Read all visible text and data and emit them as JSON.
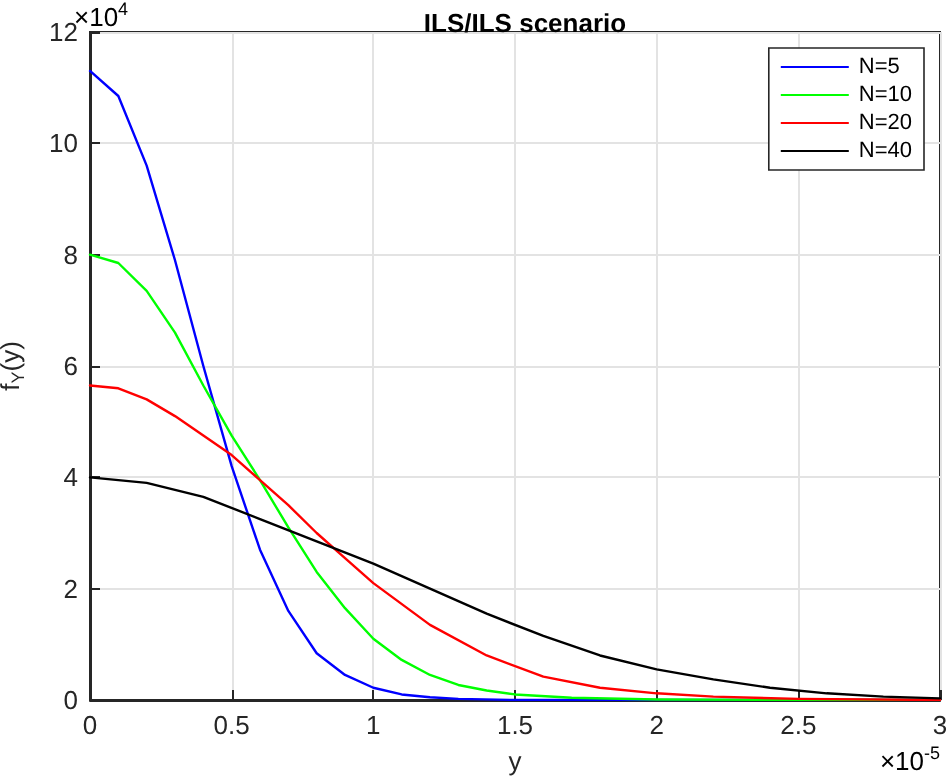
{
  "chart_data": {
    "type": "line",
    "title": "ILS/ILS scenario",
    "xlabel": "y",
    "ylabel": "f$_{Y}$(y)",
    "annotations": [
      "×10$^{4}$",
      "×10$^{-5}$"
    ],
    "xlim": [
      0,
      3
    ],
    "xticks": [
      0,
      0.5,
      1,
      1.5,
      2,
      2.5,
      3
    ],
    "ylim": [
      0,
      12
    ],
    "yticks": [
      0,
      2,
      4,
      6,
      8,
      10,
      12
    ],
    "grid": true,
    "legend": "top right",
    "marker": "none",
    "line_style": "solid",
    "series": [
      {
        "name": "N=5",
        "color": "#0000ff",
        "x": [
          0,
          0.1,
          0.2,
          0.3,
          0.4,
          0.5,
          0.6,
          0.7,
          0.8,
          0.9,
          1.0,
          1.1,
          1.2,
          1.3,
          1.5,
          2,
          3
        ],
        "values": [
          11.3,
          10.85,
          9.6,
          7.9,
          6.0,
          4.2,
          2.7,
          1.6,
          0.84,
          0.45,
          0.22,
          0.1,
          0.05,
          0.02,
          0,
          0,
          0
        ]
      },
      {
        "name": "N=10",
        "color": "#00ff00",
        "x": [
          0,
          0.1,
          0.2,
          0.3,
          0.4,
          0.5,
          0.6,
          0.7,
          0.8,
          0.9,
          1.0,
          1.1,
          1.2,
          1.3,
          1.4,
          1.5,
          1.7,
          2,
          2.5,
          3
        ],
        "values": [
          8.0,
          7.85,
          7.35,
          6.6,
          5.65,
          4.75,
          3.95,
          3.1,
          2.3,
          1.65,
          1.1,
          0.72,
          0.45,
          0.27,
          0.17,
          0.1,
          0.04,
          0.01,
          0,
          0
        ]
      },
      {
        "name": "N=20",
        "color": "#ff0000",
        "x": [
          0,
          0.1,
          0.2,
          0.3,
          0.4,
          0.5,
          0.6,
          0.7,
          0.8,
          0.9,
          1.0,
          1.2,
          1.4,
          1.6,
          1.8,
          2.0,
          2.2,
          2.5,
          3
        ],
        "values": [
          5.65,
          5.6,
          5.4,
          5.1,
          4.75,
          4.4,
          3.95,
          3.5,
          3.0,
          2.55,
          2.1,
          1.35,
          0.8,
          0.42,
          0.22,
          0.12,
          0.06,
          0.02,
          0
        ]
      },
      {
        "name": "N=40",
        "color": "#000000",
        "x": [
          0,
          0.2,
          0.4,
          0.6,
          0.8,
          1.0,
          1.2,
          1.4,
          1.6,
          1.8,
          2.0,
          2.2,
          2.4,
          2.6,
          2.8,
          3.0
        ],
        "values": [
          4.0,
          3.9,
          3.65,
          3.25,
          2.85,
          2.45,
          2.0,
          1.55,
          1.15,
          0.8,
          0.55,
          0.37,
          0.22,
          0.12,
          0.06,
          0.03
        ]
      }
    ]
  }
}
